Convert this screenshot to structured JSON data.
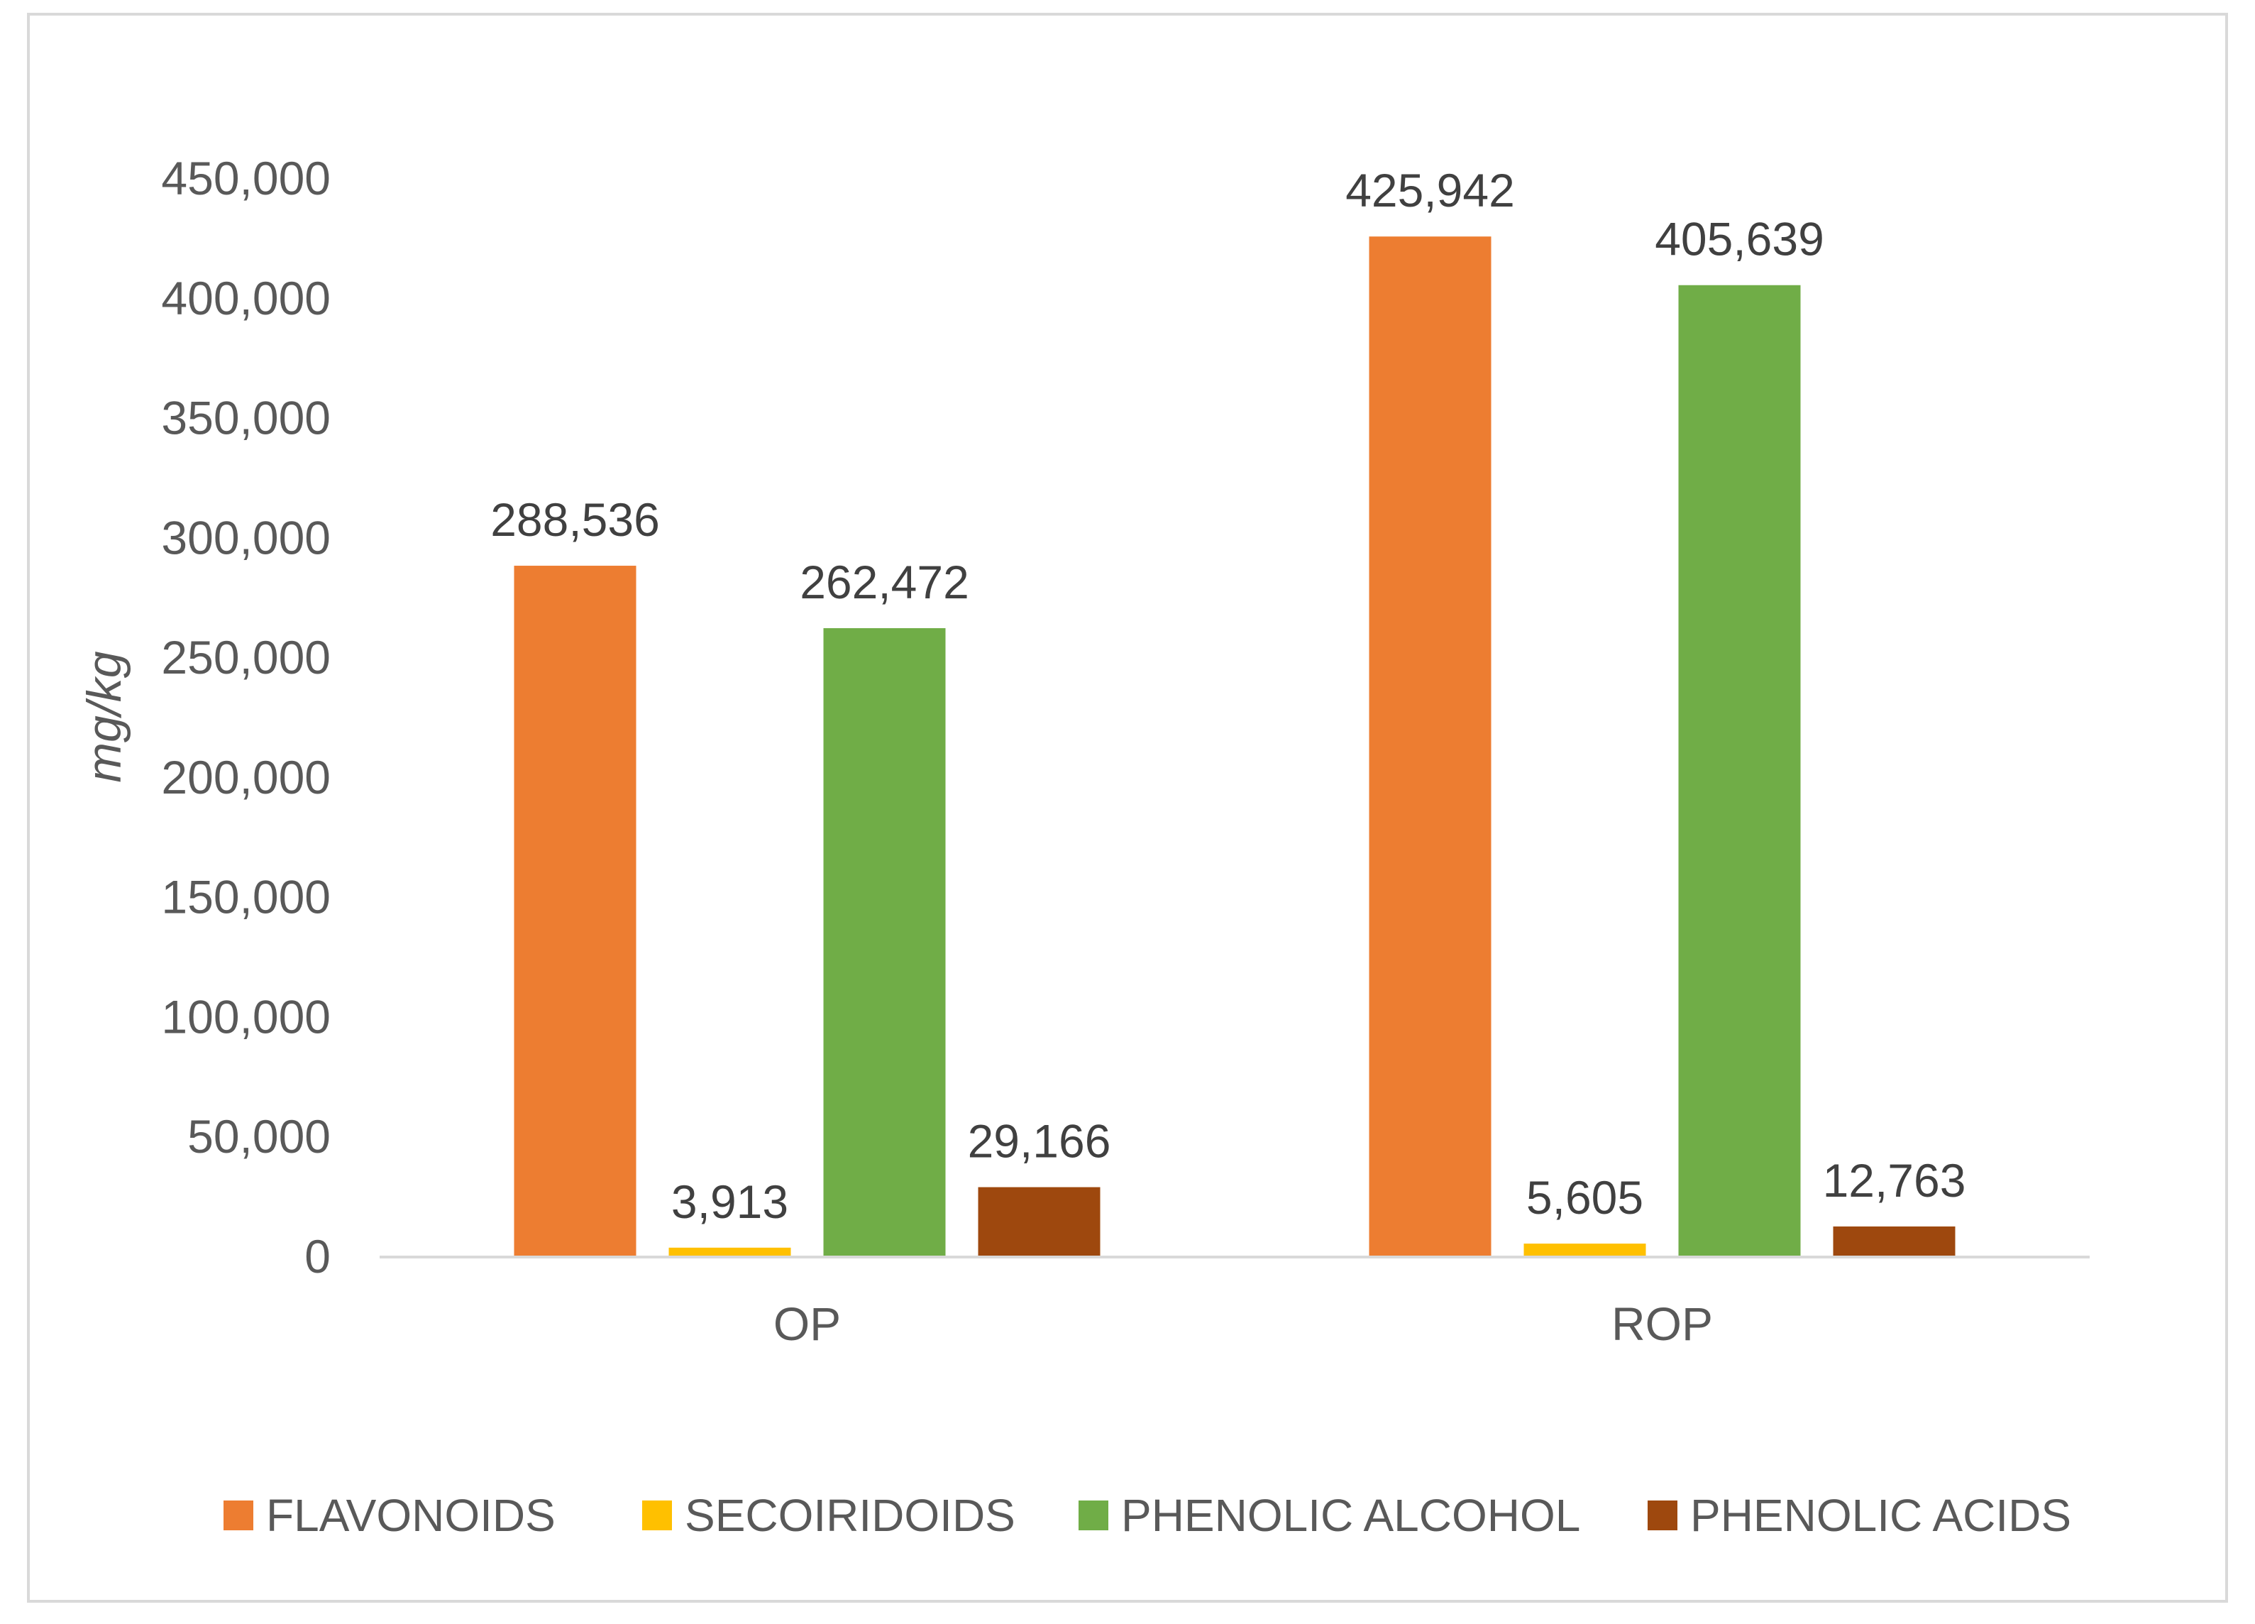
{
  "chart_data": {
    "type": "bar",
    "title": "",
    "xlabel": "",
    "ylabel": "mg/kg",
    "ylim": [
      0,
      450000
    ],
    "yticks": [
      0,
      50000,
      100000,
      150000,
      200000,
      250000,
      300000,
      350000,
      400000,
      450000
    ],
    "ytick_labels": [
      "0",
      "50,000",
      "100,000",
      "150,000",
      "200,000",
      "250,000",
      "300,000",
      "350,000",
      "400,000",
      "450,000"
    ],
    "categories": [
      "OP",
      "ROP"
    ],
    "series": [
      {
        "name": "FLAVONOIDS",
        "color": "#ED7D31",
        "values": [
          288536,
          425942
        ],
        "labels": [
          "288,536",
          "425,942"
        ]
      },
      {
        "name": "SECOIRIDOIDS",
        "color": "#FFC000",
        "values": [
          3913,
          5605
        ],
        "labels": [
          "3,913",
          "5,605"
        ]
      },
      {
        "name": "PHENOLIC ALCOHOL",
        "color": "#70AD47",
        "values": [
          262472,
          405639
        ],
        "labels": [
          "262,472",
          "405,639"
        ]
      },
      {
        "name": "PHENOLIC ACIDS",
        "color": "#9E480E",
        "values": [
          29166,
          12763
        ],
        "labels": [
          "29,166",
          "12,763"
        ]
      }
    ],
    "grid": false,
    "legend_position": "bottom"
  }
}
